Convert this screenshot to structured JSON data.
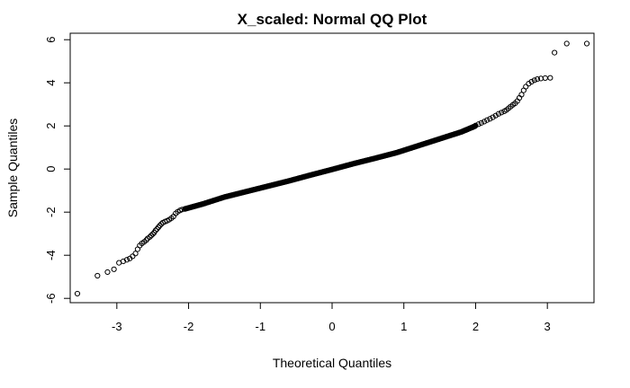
{
  "chart_data": {
    "type": "scatter",
    "title": "X_scaled: Normal QQ Plot",
    "xlabel": "Theoretical Quantiles",
    "ylabel": "Sample Quantiles",
    "xlim": [
      -3.65,
      3.65
    ],
    "ylim": [
      -6.2,
      6.3
    ],
    "xticks": [
      -3,
      -2,
      -1,
      0,
      1,
      2,
      3
    ],
    "yticks": [
      -6,
      -4,
      -2,
      0,
      2,
      4,
      6
    ],
    "marker": "open-circle",
    "color": "#000000",
    "grid": false,
    "series": [
      {
        "points": [
          [
            -3.55,
            -5.78
          ],
          [
            -3.27,
            -4.95
          ],
          [
            -3.13,
            -4.78
          ],
          [
            -3.04,
            -4.65
          ],
          [
            -2.97,
            -4.35
          ],
          [
            -2.91,
            -4.28
          ],
          [
            -2.86,
            -4.21
          ],
          [
            -2.82,
            -4.15
          ],
          [
            -2.78,
            -4.05
          ],
          [
            -2.74,
            -3.92
          ],
          [
            -2.71,
            -3.72
          ],
          [
            -2.68,
            -3.55
          ],
          [
            -2.65,
            -3.45
          ],
          [
            -2.62,
            -3.38
          ],
          [
            -2.59,
            -3.3
          ],
          [
            -2.57,
            -3.22
          ],
          [
            -2.54,
            -3.15
          ],
          [
            -2.52,
            -3.08
          ],
          [
            -2.5,
            -3.02
          ],
          [
            -2.48,
            -2.95
          ],
          [
            -2.46,
            -2.85
          ],
          [
            -2.44,
            -2.78
          ],
          [
            -2.42,
            -2.7
          ],
          [
            -2.4,
            -2.62
          ],
          [
            -2.38,
            -2.55
          ],
          [
            -2.36,
            -2.49
          ],
          [
            -2.33,
            -2.44
          ],
          [
            -2.3,
            -2.4
          ],
          [
            -2.27,
            -2.35
          ],
          [
            -2.24,
            -2.28
          ],
          [
            -2.21,
            -2.2
          ],
          [
            -2.18,
            -2.06
          ],
          [
            -2.15,
            -1.98
          ],
          [
            -2.12,
            -1.92
          ],
          [
            -2.09,
            -1.88
          ],
          [
            -2.05,
            -1.85
          ]
        ],
        "body_line": [
          [
            -2.05,
            -1.85
          ],
          [
            -1.8,
            -1.62
          ],
          [
            -1.5,
            -1.3
          ],
          [
            -1.2,
            -1.05
          ],
          [
            -0.9,
            -0.8
          ],
          [
            -0.6,
            -0.55
          ],
          [
            -0.3,
            -0.28
          ],
          [
            0.0,
            -0.02
          ],
          [
            0.3,
            0.25
          ],
          [
            0.6,
            0.5
          ],
          [
            0.9,
            0.76
          ],
          [
            1.2,
            1.08
          ],
          [
            1.5,
            1.4
          ],
          [
            1.8,
            1.72
          ],
          [
            2.0,
            2.0
          ]
        ],
        "upper_tail": [
          [
            2.0,
            2.02
          ],
          [
            2.04,
            2.08
          ],
          [
            2.08,
            2.14
          ],
          [
            2.12,
            2.2
          ],
          [
            2.16,
            2.27
          ],
          [
            2.2,
            2.33
          ],
          [
            2.24,
            2.4
          ],
          [
            2.28,
            2.48
          ],
          [
            2.32,
            2.56
          ],
          [
            2.36,
            2.62
          ],
          [
            2.4,
            2.68
          ],
          [
            2.43,
            2.74
          ],
          [
            2.46,
            2.82
          ],
          [
            2.49,
            2.9
          ],
          [
            2.52,
            2.98
          ],
          [
            2.55,
            3.05
          ],
          [
            2.58,
            3.15
          ],
          [
            2.61,
            3.3
          ],
          [
            2.64,
            3.45
          ],
          [
            2.67,
            3.65
          ],
          [
            2.7,
            3.82
          ],
          [
            2.74,
            3.96
          ],
          [
            2.78,
            4.05
          ],
          [
            2.82,
            4.12
          ],
          [
            2.86,
            4.17
          ],
          [
            2.91,
            4.2
          ],
          [
            2.97,
            4.22
          ],
          [
            3.04,
            4.23
          ],
          [
            3.1,
            5.4
          ],
          [
            3.27,
            5.82
          ],
          [
            3.55,
            5.82
          ]
        ]
      }
    ]
  }
}
